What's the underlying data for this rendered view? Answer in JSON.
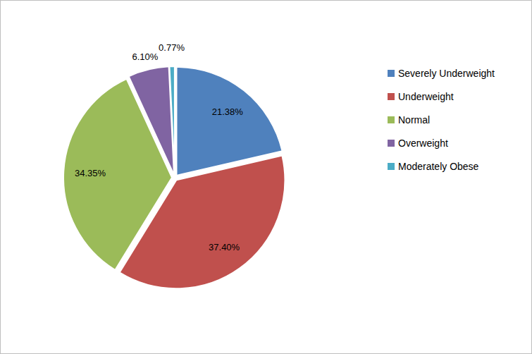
{
  "chart_data": {
    "type": "pie",
    "categories": [
      "Severely Underweight",
      "Underweight",
      "Normal",
      "Overweight",
      "Moderately Obese"
    ],
    "values": [
      21.38,
      37.4,
      34.35,
      6.1,
      0.77
    ],
    "value_labels": [
      "21.38%",
      "37.40%",
      "34.35%",
      "6.10%",
      "0.77%"
    ],
    "colors": [
      "#4f81bd",
      "#c0504d",
      "#9bbb59",
      "#8064a2",
      "#4bacc6"
    ],
    "data_labels": true,
    "legend": "right"
  }
}
